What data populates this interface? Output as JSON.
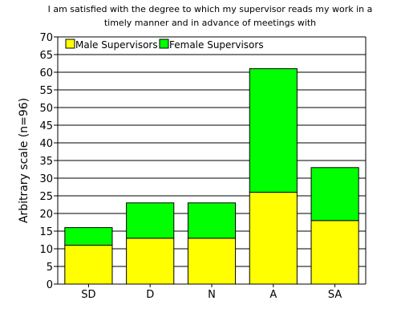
{
  "chart_data": {
    "type": "bar",
    "stacked": true,
    "title_lines": [
      "I am satisfied with the degree to which my supervisor reads my work in a",
      "timely manner and in advance of meetings with"
    ],
    "xlabel": "",
    "ylabel": "Arbitrary scale (n=96)",
    "ylim": [
      0,
      70
    ],
    "yticks": [
      0,
      5,
      10,
      15,
      20,
      25,
      30,
      35,
      40,
      45,
      50,
      55,
      60,
      65,
      70
    ],
    "grid": true,
    "legend_position": "top-left",
    "categories": [
      "SD",
      "D",
      "N",
      "A",
      "SA"
    ],
    "series": [
      {
        "name": "Male Supervisors",
        "color": "#ffff00",
        "values": [
          11,
          13,
          13,
          26,
          18
        ]
      },
      {
        "name": "Female Supervisors",
        "color": "#00ff00",
        "values": [
          5,
          10,
          10,
          35,
          15
        ]
      }
    ]
  }
}
